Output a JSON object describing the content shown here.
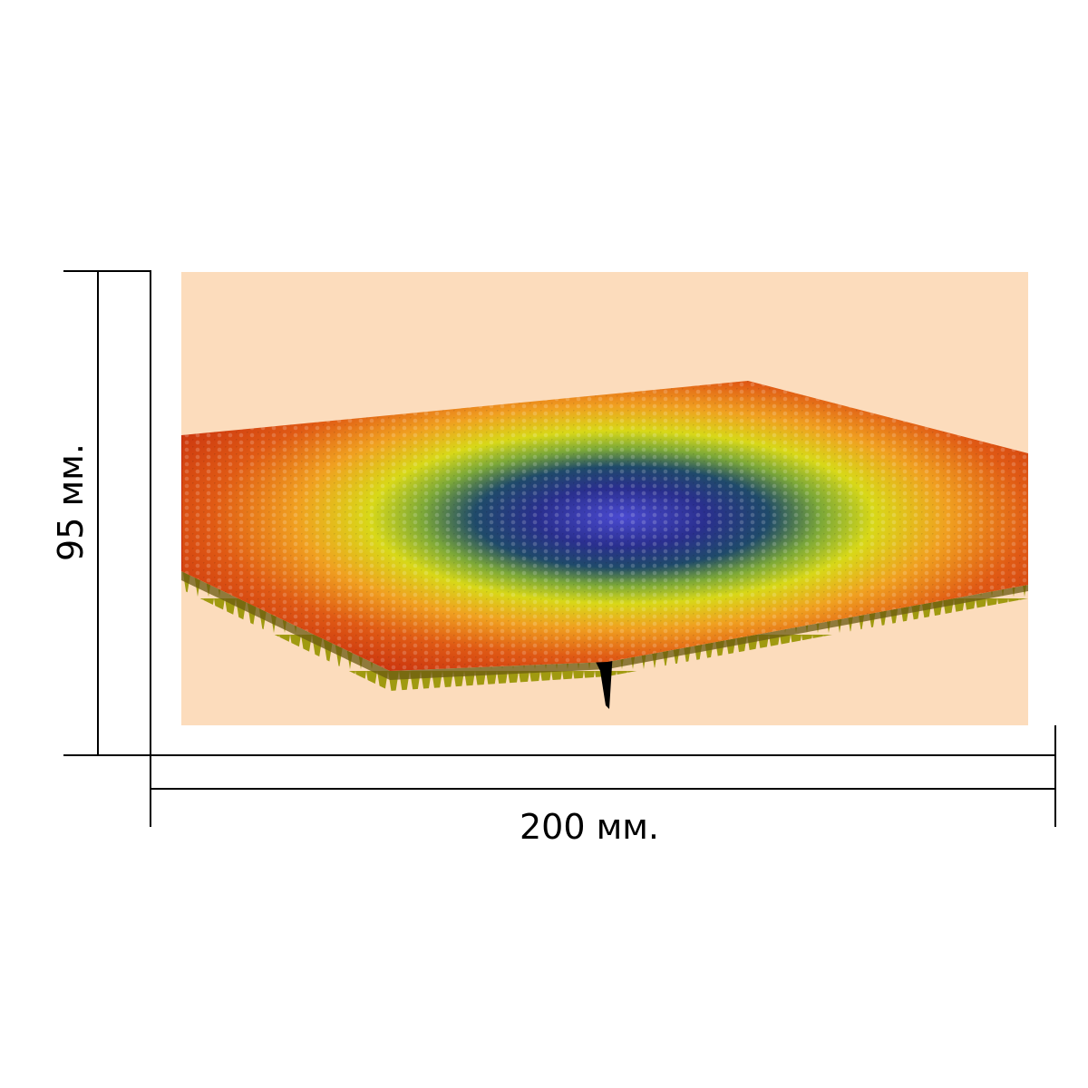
{
  "dimensions": {
    "width_label": "200 мм.",
    "height_label": "95 мм."
  },
  "artwork": {
    "background_color": "#fcdcbc",
    "surface_colors": [
      "#d03010",
      "#e05a14",
      "#f0a020",
      "#d8d818",
      "#7ca838",
      "#1f4a6a",
      "#2a2f8f",
      "#4a4ad0"
    ],
    "pit_color": "#000000"
  }
}
